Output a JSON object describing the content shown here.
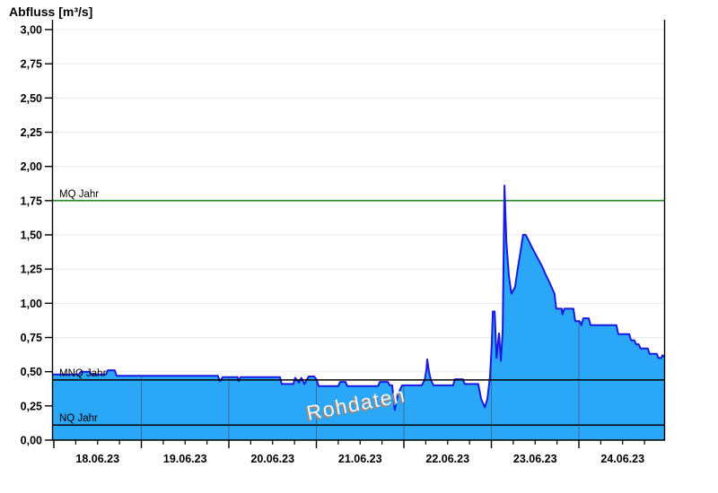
{
  "title": "Abfluss [m³/s]",
  "watermark": "Rohdaten",
  "colors": {
    "background": "#ffffff",
    "grid_horizontal": "#ebebeb",
    "axis": "#000000",
    "day_line_in_area": "#3e6e94",
    "area_fill": "#2aa7f7",
    "area_stroke": "#1a1ae0",
    "mq_line_green": "#007d00",
    "ref_line_black": "#000000",
    "tick_text": "#000000",
    "watermark_text": "#f4f4f4",
    "watermark_shadow": "#8c8c8c"
  },
  "chart_data": {
    "type": "area",
    "title": "Abfluss [m³/s]",
    "ylabel": "Abfluss [m³/s]",
    "xlabel": "",
    "ylim": [
      0,
      3.0
    ],
    "y_tick_step": 0.25,
    "y_ticks": [
      0,
      0.25,
      0.5,
      0.75,
      1.0,
      1.25,
      1.5,
      1.75,
      2.0,
      2.25,
      2.5,
      2.75,
      3.0
    ],
    "y_tick_labels": [
      "0,00",
      "0,25",
      "0,50",
      "0,75",
      "1,00",
      "1,25",
      "1,50",
      "1,75",
      "2,00",
      "2,25",
      "2,50",
      "2,75",
      "3,00"
    ],
    "x_axis": {
      "unit": "hours since 18.06.2023 00:00",
      "range_hours": [
        0,
        167.4
      ],
      "hours_per_day": 24,
      "minor_tick_hours": 6,
      "day_labels": [
        "18.06.23",
        "19.06.23",
        "20.06.23",
        "21.06.23",
        "22.06.23",
        "23.06.23",
        "24.06.23"
      ]
    },
    "grid": {
      "horizontal": true,
      "vertical_day_lines_inside_area_only": true
    },
    "legend_position": "none",
    "ref_lines": [
      {
        "label": "MQ Jahr",
        "value": 1.75,
        "color": "#007d00",
        "layer": "below-area"
      },
      {
        "label": "MNQ Jahr",
        "value": 0.44,
        "color": "#000000",
        "layer": "above-area"
      },
      {
        "label": "NQ Jahr",
        "value": 0.11,
        "color": "#000000",
        "layer": "above-area"
      }
    ],
    "series": [
      {
        "name": "Rohdaten",
        "fill": "#2aa7f7",
        "stroke": "#1a1ae0",
        "points_hours_value": [
          [
            0,
            0.48
          ],
          [
            6.9,
            0.48
          ],
          [
            7.4,
            0.5
          ],
          [
            9.8,
            0.5
          ],
          [
            10.3,
            0.48
          ],
          [
            14.3,
            0.48
          ],
          [
            14.8,
            0.51
          ],
          [
            16.7,
            0.51
          ],
          [
            17.2,
            0.47
          ],
          [
            45,
            0.47
          ],
          [
            45.5,
            0.43
          ],
          [
            46.3,
            0.46
          ],
          [
            50.4,
            0.46
          ],
          [
            50.7,
            0.43
          ],
          [
            51.2,
            0.46
          ],
          [
            62,
            0.46
          ],
          [
            62.5,
            0.41
          ],
          [
            65.7,
            0.41
          ],
          [
            66.2,
            0.455
          ],
          [
            67.2,
            0.42
          ],
          [
            67.9,
            0.455
          ],
          [
            68.7,
            0.41
          ],
          [
            69.9,
            0.465
          ],
          [
            71.4,
            0.465
          ],
          [
            72.1,
            0.44
          ],
          [
            72.6,
            0.395
          ],
          [
            78,
            0.395
          ],
          [
            78.5,
            0.425
          ],
          [
            80,
            0.425
          ],
          [
            80.5,
            0.395
          ],
          [
            88.9,
            0.395
          ],
          [
            89.4,
            0.425
          ],
          [
            91.6,
            0.425
          ],
          [
            92.1,
            0.4
          ],
          [
            92.8,
            0.4
          ],
          [
            93.5,
            0.22
          ],
          [
            94.3,
            0.33
          ],
          [
            95.5,
            0.4
          ],
          [
            100.9,
            0.4
          ],
          [
            101.7,
            0.44
          ],
          [
            102.2,
            0.52
          ],
          [
            102.4,
            0.59
          ],
          [
            102.9,
            0.5
          ],
          [
            103.4,
            0.44
          ],
          [
            104.1,
            0.4
          ],
          [
            109.5,
            0.4
          ],
          [
            110,
            0.445
          ],
          [
            112.2,
            0.445
          ],
          [
            112.7,
            0.41
          ],
          [
            116.4,
            0.41
          ],
          [
            117.2,
            0.3
          ],
          [
            118.2,
            0.24
          ],
          [
            118.9,
            0.3
          ],
          [
            119.6,
            0.46
          ],
          [
            120.1,
            0.7
          ],
          [
            120.4,
            0.94
          ],
          [
            120.9,
            0.94
          ],
          [
            121.4,
            0.6
          ],
          [
            122.1,
            0.78
          ],
          [
            122.6,
            0.58
          ],
          [
            123.1,
            0.8
          ],
          [
            123.6,
            1.86
          ],
          [
            124.1,
            1.45
          ],
          [
            124.8,
            1.2
          ],
          [
            125.5,
            1.07
          ],
          [
            126.5,
            1.12
          ],
          [
            127.2,
            1.25
          ],
          [
            128,
            1.38
          ],
          [
            128.7,
            1.5
          ],
          [
            129.4,
            1.5
          ],
          [
            130.2,
            1.46
          ],
          [
            130.9,
            1.42
          ],
          [
            131.9,
            1.37
          ],
          [
            132.9,
            1.32
          ],
          [
            133.9,
            1.27
          ],
          [
            134.9,
            1.21
          ],
          [
            135.8,
            1.16
          ],
          [
            136.8,
            1.1
          ],
          [
            137.3,
            1.07
          ],
          [
            137.8,
            0.96
          ],
          [
            139.3,
            0.96
          ],
          [
            139.5,
            0.92
          ],
          [
            140,
            0.96
          ],
          [
            142.5,
            0.96
          ],
          [
            143,
            0.87
          ],
          [
            144.2,
            0.87
          ],
          [
            144.7,
            0.84
          ],
          [
            145.2,
            0.89
          ],
          [
            146.7,
            0.89
          ],
          [
            147.2,
            0.84
          ],
          [
            154.3,
            0.84
          ],
          [
            154.8,
            0.775
          ],
          [
            157.8,
            0.775
          ],
          [
            158.3,
            0.73
          ],
          [
            159.2,
            0.73
          ],
          [
            159.7,
            0.7
          ],
          [
            160.4,
            0.7
          ],
          [
            160.9,
            0.67
          ],
          [
            162.9,
            0.67
          ],
          [
            163.4,
            0.63
          ],
          [
            165.4,
            0.63
          ],
          [
            165.8,
            0.6
          ],
          [
            166.6,
            0.6
          ],
          [
            166.9,
            0.62
          ],
          [
            167.4,
            0.61
          ]
        ]
      }
    ],
    "annotations": [
      {
        "text": "Rohdaten",
        "style": "gray-shadow watermark, rotated ~-11deg, centered near 21.06 12:00 at y≈0.2"
      }
    ]
  }
}
